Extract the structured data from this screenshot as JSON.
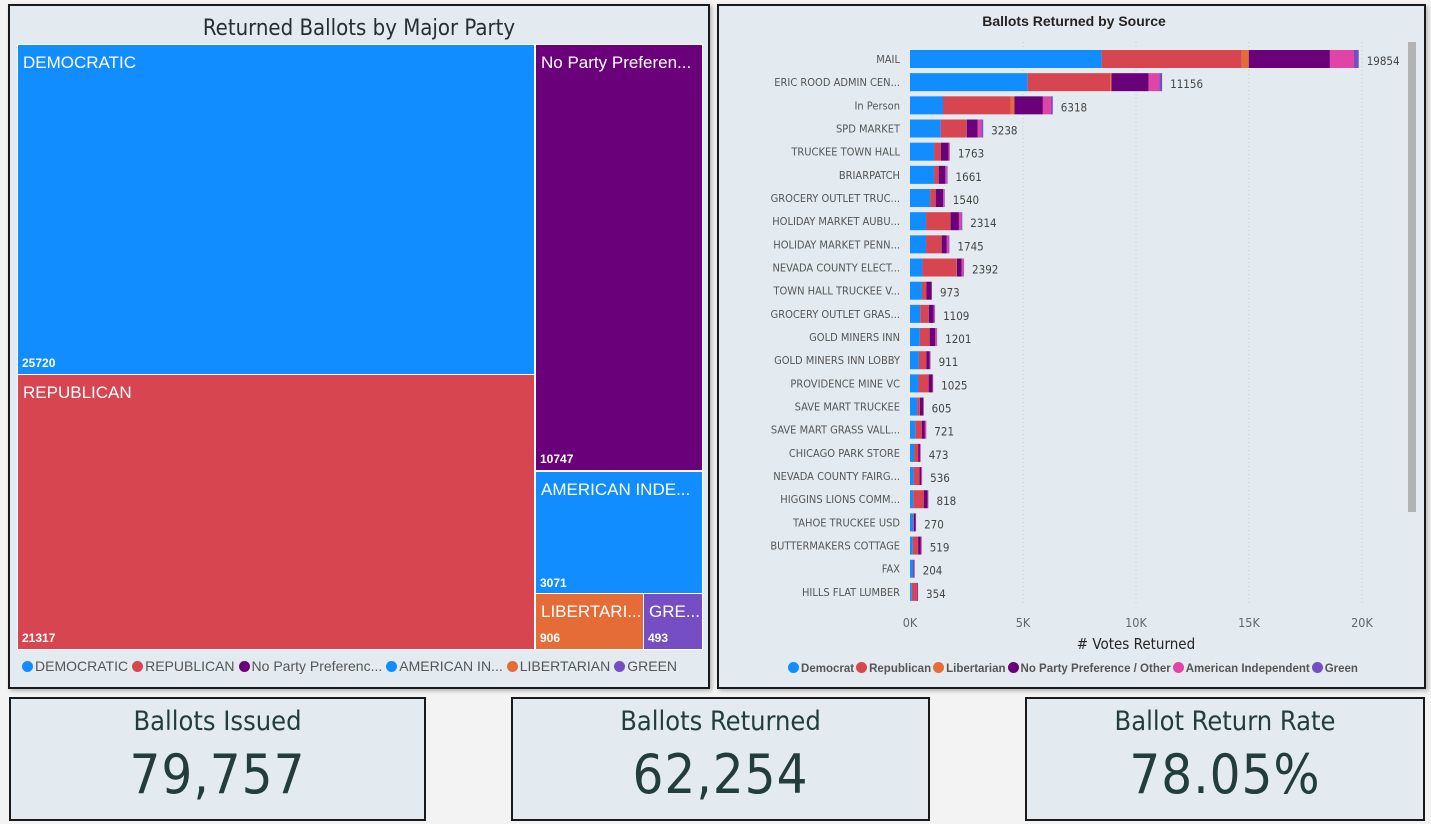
{
  "colors": {
    "democratic": "#118DFF",
    "republican": "#D64550",
    "libertarian": "#E66C37",
    "npp": "#6B007B",
    "american_independent": "#E044A7",
    "green": "#744EC2",
    "treemap_american_independent": "#118DFF"
  },
  "chart_data": [
    {
      "type": "treemap",
      "title": "Returned Ballots by Major Party",
      "items": [
        {
          "label": "DEMOCRATIC",
          "value": 25720,
          "color": "#118DFF"
        },
        {
          "label": "REPUBLICAN",
          "value": 21317,
          "color": "#D64550"
        },
        {
          "label": "No Party Preferen...",
          "value": 10747,
          "color": "#6B007B"
        },
        {
          "label": "AMERICAN INDE...",
          "value": 3071,
          "color": "#118DFF"
        },
        {
          "label": "LIBERTARI...",
          "value": 906,
          "color": "#E66C37"
        },
        {
          "label": "GRE...",
          "value": 493,
          "color": "#744EC2"
        }
      ],
      "legend": [
        {
          "label": "DEMOCRATIC",
          "color": "#118DFF"
        },
        {
          "label": "REPUBLICAN",
          "color": "#D64550"
        },
        {
          "label": "No Party Preferenc...",
          "color": "#6B007B"
        },
        {
          "label": "AMERICAN IN...",
          "color": "#118DFF"
        },
        {
          "label": "LIBERTARIAN",
          "color": "#E66C37"
        },
        {
          "label": "GREEN",
          "color": "#744EC2"
        }
      ],
      "legend_position": "bottom"
    },
    {
      "type": "bar",
      "orientation": "horizontal",
      "stacked": true,
      "title": "Ballots Returned by Source",
      "xlabel": "# Votes Returned",
      "xlim": [
        0,
        20000
      ],
      "xticks": [
        "0K",
        "5K",
        "10K",
        "15K",
        "20K"
      ],
      "grid": true,
      "legend_position": "bottom",
      "categories": [
        "MAIL",
        "ERIC ROOD ADMIN CEN...",
        "In Person",
        "SPD MARKET",
        "TRUCKEE TOWN HALL",
        "BRIARPATCH",
        "GROCERY OUTLET TRUC...",
        "HOLIDAY MARKET AUBU...",
        "HOLIDAY MARKET PENN...",
        "NEVADA COUNTY ELECT...",
        "TOWN HALL TRUCKEE V...",
        "GROCERY OUTLET GRAS...",
        "GOLD MINERS INN",
        "GOLD MINERS INN LOBBY",
        "PROVIDENCE MINE VC",
        "SAVE MART TRUCKEE",
        "SAVE MART GRASS VALL...",
        "CHICAGO PARK STORE",
        "NEVADA COUNTY FAIRG...",
        "HIGGINS LIONS COMM...",
        "TAHOE TRUCKEE USD",
        "BUTTERMAKERS COTTAGE",
        "FAX",
        "HILLS FLAT LUMBER"
      ],
      "totals": [
        19854,
        11156,
        6318,
        3238,
        1763,
        1661,
        1540,
        2314,
        1745,
        2392,
        973,
        1109,
        1201,
        911,
        1025,
        605,
        721,
        473,
        536,
        818,
        270,
        519,
        204,
        354
      ],
      "series": [
        {
          "name": "Democrat",
          "color": "#118DFF",
          "values": [
            8480,
            5207,
            1460,
            1360,
            1065,
            1065,
            890,
            710,
            710,
            550,
            530,
            455,
            435,
            395,
            375,
            315,
            235,
            180,
            160,
            140,
            140,
            120,
            140,
            80
          ]
        },
        {
          "name": "Republican",
          "color": "#D64550",
          "values": [
            6195,
            3650,
            3000,
            1125,
            275,
            195,
            235,
            1065,
            670,
            1500,
            180,
            355,
            415,
            315,
            435,
            120,
            275,
            175,
            255,
            455,
            20,
            235,
            15,
            215
          ]
        },
        {
          "name": "Libertarian",
          "color": "#E66C37",
          "values": [
            315,
            60,
            160,
            20,
            15,
            10,
            10,
            15,
            15,
            20,
            10,
            15,
            15,
            10,
            10,
            5,
            10,
            5,
            5,
            10,
            5,
            5,
            0,
            5
          ]
        },
        {
          "name": "No Party Preference / Other",
          "color": "#6B007B",
          "values": [
            3590,
            1640,
            1260,
            490,
            355,
            295,
            335,
            375,
            235,
            215,
            235,
            215,
            255,
            155,
            175,
            155,
            140,
            80,
            80,
            175,
            90,
            120,
            40,
            40
          ]
        },
        {
          "name": "American Independent",
          "color": "#E044A7",
          "values": [
            1065,
            470,
            355,
            160,
            50,
            60,
            50,
            110,
            100,
            90,
            15,
            50,
            60,
            30,
            25,
            10,
            50,
            25,
            30,
            30,
            15,
            30,
            9,
            14
          ]
        },
        {
          "name": "Green",
          "color": "#744EC2",
          "values": [
            209,
            129,
            83,
            83,
            3,
            36,
            20,
            39,
            15,
            17,
            3,
            19,
            21,
            6,
            5,
            0,
            11,
            8,
            6,
            8,
            0,
            9,
            0,
            0
          ]
        }
      ]
    }
  ],
  "kpis": [
    {
      "title": "Ballots Issued",
      "value": "79,757"
    },
    {
      "title": "Ballots Returned",
      "value": "62,254"
    },
    {
      "title": "Ballot Return Rate",
      "value": "78.05%"
    }
  ]
}
